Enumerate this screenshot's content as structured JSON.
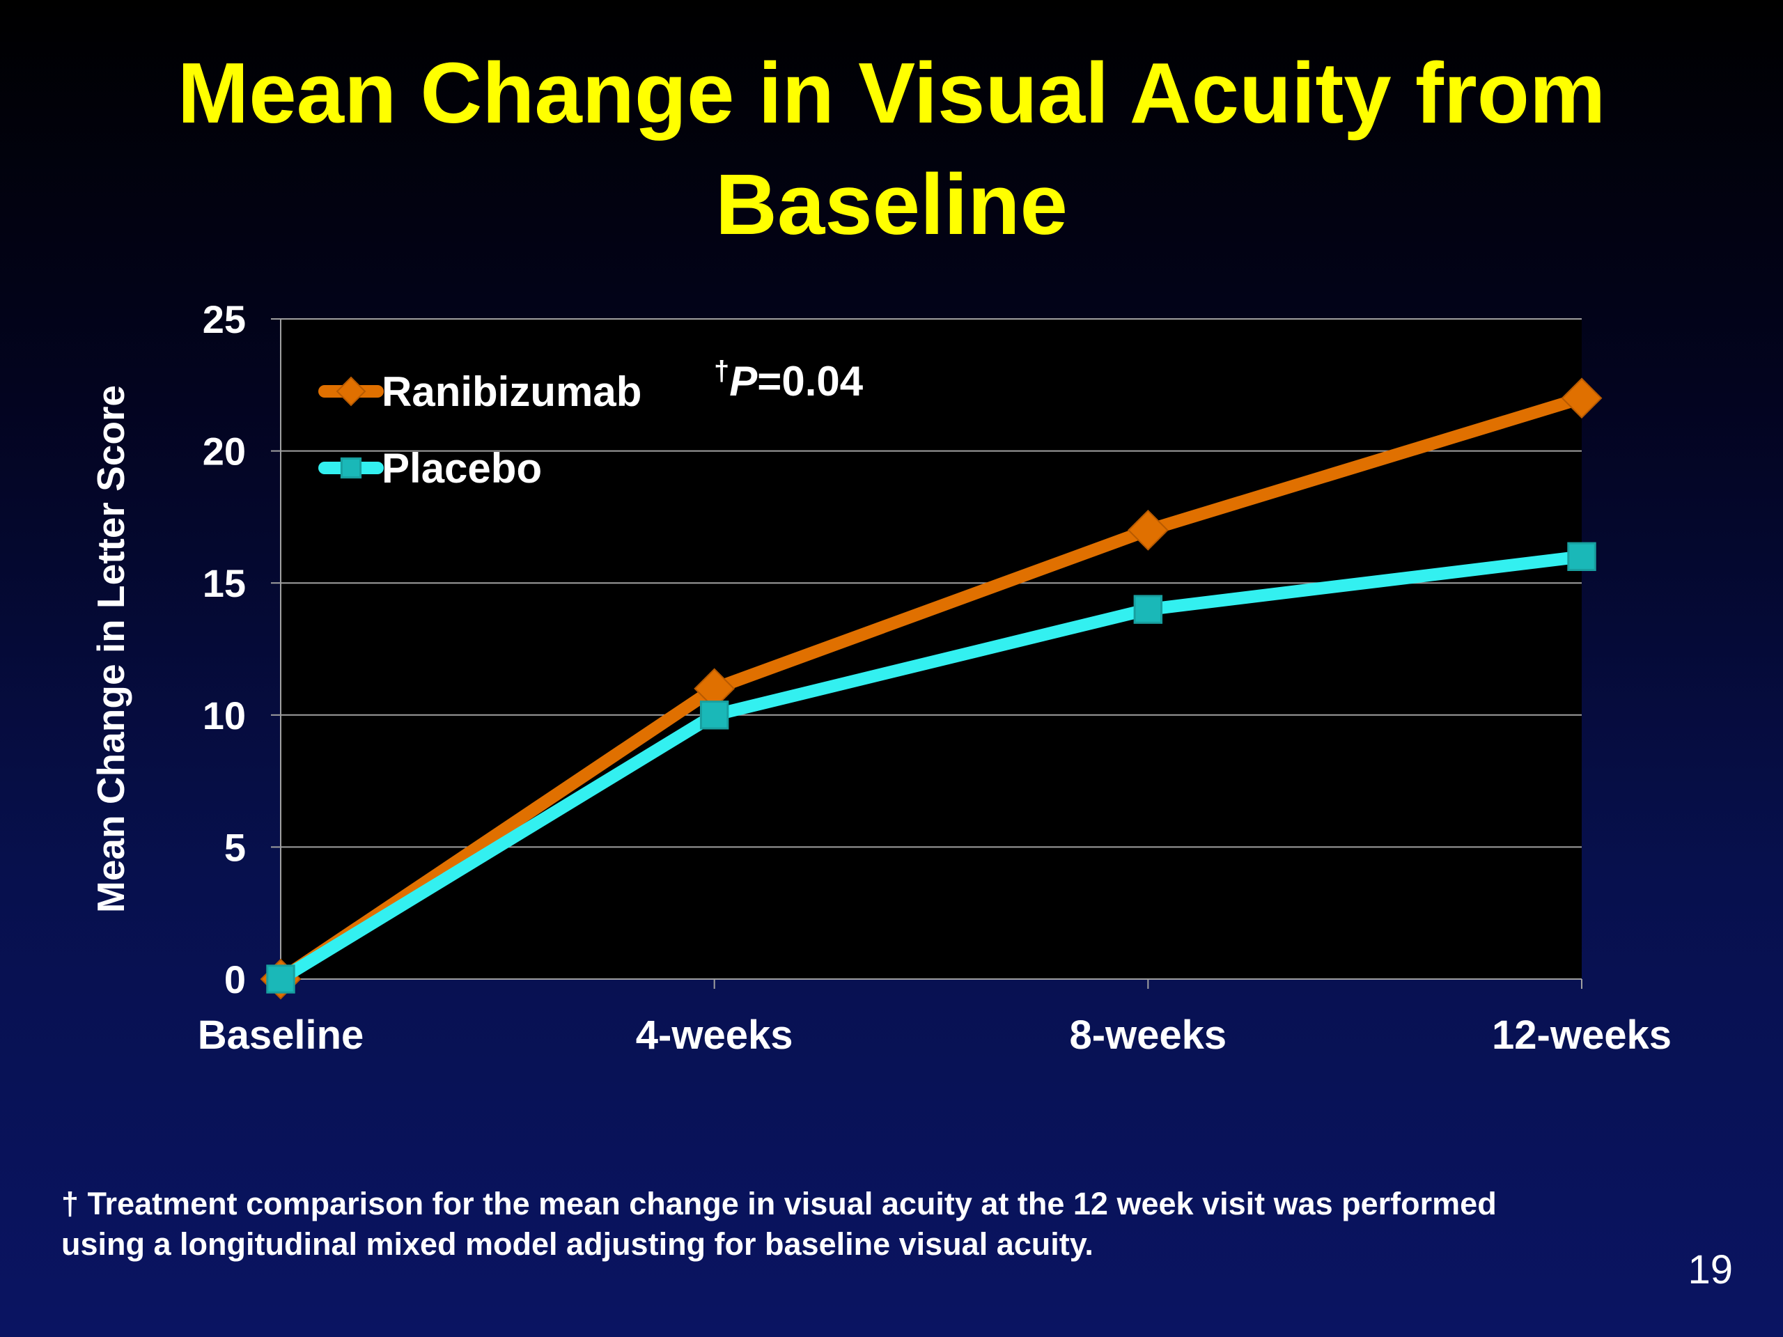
{
  "slide": {
    "title_line1": "Mean Change in Visual Acuity from",
    "title_line2": "Baseline",
    "footnote_line1": "† Treatment comparison for the mean change in visual acuity at the 12 week visit was performed",
    "footnote_line2": "using a longitudinal mixed model adjusting for baseline visual acuity.",
    "page_number": "19"
  },
  "chart_data": {
    "type": "line",
    "title": "",
    "xlabel": "",
    "ylabel": "Mean Change in Letter Score",
    "categories": [
      "Baseline",
      "4-weeks",
      "8-weeks",
      "12-weeks"
    ],
    "ylim": [
      0,
      25
    ],
    "yticks": [
      0,
      5,
      10,
      15,
      20,
      25
    ],
    "grid": true,
    "legend_position": "top-left",
    "annotation": {
      "dagger": "†",
      "p_label": "P",
      "p_value": "=0.04"
    },
    "series": [
      {
        "name": "Ranibizumab",
        "values": [
          0,
          11,
          17,
          22
        ],
        "color": "#e07000",
        "marker": "diamond"
      },
      {
        "name": "Placebo",
        "values": [
          0,
          10,
          14,
          16
        ],
        "color": "#33f0f0",
        "marker": "square"
      }
    ]
  },
  "colors": {
    "title": "#ffff00",
    "plot_background": "#000000",
    "gridline": "#a0a0a0",
    "text": "#ffffff"
  }
}
